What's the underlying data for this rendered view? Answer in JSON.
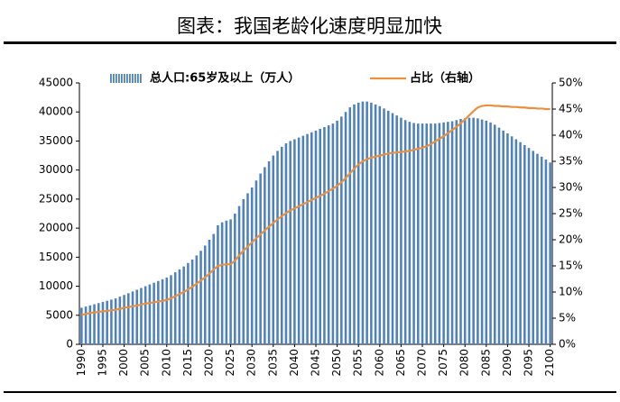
{
  "chart_data": {
    "type": "bar_line",
    "title": "图表：我国老龄化速度明显加快",
    "categories": [
      "1990",
      null,
      null,
      null,
      null,
      "1995",
      null,
      null,
      null,
      null,
      "2000",
      null,
      null,
      null,
      null,
      "2005",
      null,
      null,
      null,
      null,
      "2010",
      null,
      null,
      null,
      null,
      "2015",
      null,
      null,
      null,
      null,
      "2020",
      null,
      null,
      null,
      null,
      "2025",
      null,
      null,
      null,
      null,
      "2030",
      null,
      null,
      null,
      null,
      "2035",
      null,
      null,
      null,
      null,
      "2040",
      null,
      null,
      null,
      null,
      "2045",
      null,
      null,
      null,
      null,
      "2050",
      null,
      null,
      null,
      null,
      "2055",
      null,
      null,
      null,
      null,
      "2060",
      null,
      null,
      null,
      null,
      "2065",
      null,
      null,
      null,
      null,
      "2070",
      null,
      null,
      null,
      null,
      "2075",
      null,
      null,
      null,
      null,
      "2080",
      null,
      null,
      null,
      null,
      "2085",
      null,
      null,
      null,
      null,
      "2090",
      null,
      null,
      null,
      null,
      "2095",
      null,
      null,
      null,
      null,
      "2100"
    ],
    "series": [
      {
        "name": "总人口:65岁及以上（万人）",
        "type": "bar",
        "color": "#4f81bd",
        "values": [
          6300,
          6500,
          6700,
          6900,
          7100,
          7300,
          7500,
          7700,
          7900,
          8200,
          8500,
          8800,
          9100,
          9400,
          9700,
          10000,
          10300,
          10600,
          10900,
          11200,
          11500,
          11900,
          12400,
          12900,
          13400,
          14000,
          14600,
          15300,
          16100,
          17000,
          18000,
          19000,
          20500,
          21000,
          21300,
          21500,
          22500,
          23800,
          25000,
          26000,
          27000,
          28200,
          29400,
          30500,
          31500,
          32500,
          33300,
          34000,
          34600,
          35000,
          35300,
          35600,
          35900,
          36200,
          36500,
          36800,
          37100,
          37400,
          37700,
          38000,
          38500,
          39200,
          40000,
          40800,
          41300,
          41600,
          41800,
          41800,
          41600,
          41300,
          41000,
          40600,
          40200,
          39800,
          39400,
          39000,
          38600,
          38300,
          38100,
          38000,
          38000,
          38000,
          38000,
          38000,
          38100,
          38200,
          38300,
          38400,
          38600,
          38800,
          38900,
          39000,
          39000,
          38900,
          38700,
          38500,
          38200,
          37800,
          37300,
          36800,
          36300,
          35800,
          35300,
          34800,
          34300,
          33800,
          33300,
          32800,
          32300,
          31800,
          31300
        ]
      },
      {
        "name": "占比（右轴）",
        "type": "line",
        "axis": "y2",
        "color": "#e8923f",
        "values": [
          5.6,
          5.8,
          6.0,
          6.1,
          6.2,
          6.3,
          6.4,
          6.5,
          6.6,
          6.8,
          7.0,
          7.1,
          7.3,
          7.4,
          7.6,
          7.8,
          7.9,
          8.0,
          8.2,
          8.3,
          8.5,
          8.8,
          9.2,
          9.6,
          10.0,
          10.5,
          11.0,
          11.6,
          12.2,
          12.8,
          13.5,
          14.3,
          15.0,
          15.2,
          15.3,
          15.3,
          16.0,
          17.0,
          17.9,
          18.7,
          19.5,
          20.3,
          21.0,
          21.8,
          22.5,
          23.2,
          23.9,
          24.5,
          25.1,
          25.6,
          26.0,
          26.4,
          26.8,
          27.2,
          27.6,
          28.0,
          28.4,
          28.8,
          29.3,
          29.8,
          30.3,
          31.0,
          31.8,
          32.7,
          33.6,
          34.4,
          35.0,
          35.4,
          35.7,
          35.9,
          36.1,
          36.3,
          36.5,
          36.6,
          36.7,
          36.8,
          36.9,
          37.0,
          37.2,
          37.4,
          37.6,
          37.9,
          38.3,
          38.8,
          39.3,
          39.8,
          40.4,
          41.0,
          41.6,
          42.3,
          43.0,
          43.8,
          44.6,
          45.3,
          45.6,
          45.7,
          45.7,
          45.6,
          45.6,
          45.5,
          45.5,
          45.4,
          45.4,
          45.3,
          45.3,
          45.2,
          45.2,
          45.1,
          45.1,
          45.0,
          45.0
        ]
      }
    ],
    "ylim": [
      0,
      45000
    ],
    "yticks": [
      0,
      5000,
      10000,
      15000,
      20000,
      25000,
      30000,
      35000,
      40000,
      45000
    ],
    "y2lim": [
      0,
      50
    ],
    "y2ticks": [
      {
        "value": 0,
        "label": "0%"
      },
      {
        "value": 5,
        "label": "5%"
      },
      {
        "value": 10,
        "label": "10%"
      },
      {
        "value": 15,
        "label": "15%"
      },
      {
        "value": 20,
        "label": "20%"
      },
      {
        "value": 25,
        "label": "25%"
      },
      {
        "value": 30,
        "label": "30%"
      },
      {
        "value": 35,
        "label": "35%"
      },
      {
        "value": 40,
        "label": "40%"
      },
      {
        "value": 45,
        "label": "45%"
      },
      {
        "value": 50,
        "label": "50%"
      }
    ],
    "legend": "top",
    "grid": false
  }
}
